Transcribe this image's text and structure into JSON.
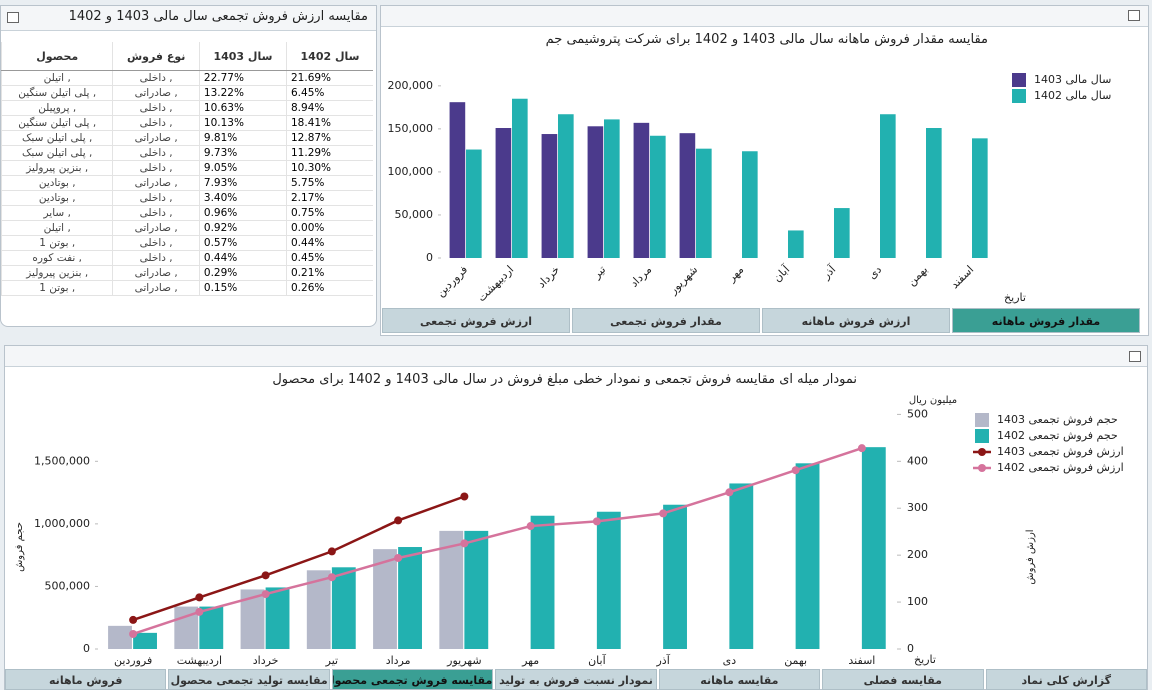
{
  "table": {
    "title": "مقایسه ارزش فروش تجمعی سال مالی 1403 و 1402",
    "columns": [
      "محصول",
      "نوع فروش",
      "سال 1403",
      "سال 1402"
    ],
    "rows": [
      [
        "اتیلن ,",
        "داخلی ,",
        "22.77%",
        "21.69%"
      ],
      [
        "پلی اتیلن سنگین ,",
        "صادراتی ,",
        "13.22%",
        "6.45%"
      ],
      [
        "پروپیلن ,",
        "داخلی ,",
        "10.63%",
        "8.94%"
      ],
      [
        "پلی اتیلن سنگین ,",
        "داخلی ,",
        "10.13%",
        "18.41%"
      ],
      [
        "پلی اتیلن سبک ,",
        "صادراتی ,",
        "9.81%",
        "12.87%"
      ],
      [
        "پلی اتیلن سبک ,",
        "داخلی ,",
        "9.73%",
        "11.29%"
      ],
      [
        "بنزین پیرولیز ,",
        "داخلی ,",
        "9.05%",
        "10.30%"
      ],
      [
        "بوتادین ,",
        "صادراتی ,",
        "7.93%",
        "5.75%"
      ],
      [
        "بوتادین ,",
        "داخلی ,",
        "3.40%",
        "2.17%"
      ],
      [
        "سایر ,",
        "داخلی ,",
        "0.96%",
        "0.75%"
      ],
      [
        "اتیلن ,",
        "صادراتی ,",
        "0.92%",
        "0.00%"
      ],
      [
        "بوتن 1 ,",
        "داخلی ,",
        "0.57%",
        "0.44%"
      ],
      [
        "نفت کوره ,",
        "داخلی ,",
        "0.44%",
        "0.45%"
      ],
      [
        "بنزین پیرولیز ,",
        "صادراتی ,",
        "0.29%",
        "0.21%"
      ],
      [
        "بوتن 1 ,",
        "صادراتی ,",
        "0.15%",
        "0.26%"
      ]
    ]
  },
  "chart_data": [
    {
      "type": "bar",
      "title": "مقایسه مقدار فروش ماهانه سال مالی 1403 و 1402 برای شرکت پتروشیمی جم",
      "categories": [
        "فروردین",
        "اردیبهشت",
        "خرداد",
        "تیر",
        "مرداد",
        "شهریور",
        "مهر",
        "آبان",
        "آذر",
        "دی",
        "بهمن",
        "اسفند"
      ],
      "series": [
        {
          "name": "سال مالی 1403",
          "color": "#4b3a8c",
          "values": [
            181000,
            151000,
            144000,
            153000,
            157000,
            145000,
            null,
            null,
            null,
            null,
            null,
            null
          ]
        },
        {
          "name": "سال مالی 1402",
          "color": "#22b1b0",
          "values": [
            126000,
            185000,
            167000,
            161000,
            142000,
            127000,
            124000,
            32000,
            58000,
            167000,
            151000,
            139000
          ]
        }
      ],
      "ylim": [
        0,
        230000
      ],
      "yticks": [
        0,
        {
          "value": 50000,
          "label": "50,000"
        },
        {
          "value": 100000,
          "label": "100,000"
        },
        {
          "value": 150000,
          "label": "150,000"
        },
        {
          "value": 200000,
          "label": "200,000"
        }
      ],
      "xlabel": "تاریخ",
      "grid": false
    },
    {
      "type": "combo",
      "title": "نمودار میله ای مقایسه فروش تجمعی و نمودار خطی مبلغ فروش در سال مالی 1403 و 1402 برای محصول",
      "categories": [
        "فروردین",
        "اردیبهشت",
        "خرداد",
        "تیر",
        "مرداد",
        "شهریور",
        "مهر",
        "آبان",
        "آذر",
        "دی",
        "بهمن",
        "اسفند"
      ],
      "series": [
        {
          "name": "حجم فروش تجمعی 1403",
          "type": "bar",
          "color": "#b4b8c9",
          "values": [
            185000,
            339000,
            476000,
            629000,
            798000,
            944000,
            null,
            null,
            null,
            null,
            null,
            null
          ]
        },
        {
          "name": "حجم فروش تجمعی 1402",
          "type": "bar",
          "color": "#22b1b0",
          "values": [
            129000,
            339000,
            492000,
            653000,
            815000,
            944000,
            1065000,
            1097000,
            1153000,
            1323000,
            1484000,
            1613000
          ]
        },
        {
          "name": "ارزش فروش تجمعی 1403",
          "type": "line",
          "axis": "y2",
          "color": "#8b1616",
          "values": [
            62,
            110,
            157,
            208,
            274,
            325,
            null,
            null,
            null,
            null,
            null,
            null
          ]
        },
        {
          "name": "ارزش فروش تجمعی 1402",
          "type": "line",
          "axis": "y2",
          "color": "#d5739c",
          "values": [
            32,
            79,
            117,
            153,
            194,
            225,
            262,
            272,
            289,
            334,
            381,
            428
          ]
        }
      ],
      "ylim": [
        0,
        1950000
      ],
      "yticks": [
        0,
        {
          "value": 500000,
          "label": "500,000"
        },
        {
          "value": 1000000,
          "label": "1,000,000"
        },
        {
          "value": 1500000,
          "label": "1,500,000"
        }
      ],
      "y2lim": [
        0,
        520
      ],
      "y2ticks": [
        0,
        100,
        200,
        300,
        400,
        500
      ],
      "ylabel": "حجم فروش",
      "y2label": "ارزش فروش",
      "y2unit": "میلیون ریال",
      "xlabel": "تاریخ",
      "grid": false
    }
  ],
  "top_tabs": [
    "ارزش فروش تجمعی",
    "مقدار فروش تجمعی",
    "ارزش فروش ماهانه",
    "مقدار فروش ماهانه"
  ],
  "bottom_tabs": [
    "فروش ماهانه",
    "مقایسه تولید تجمعی محصول",
    "مقایسه فروش تجمعی محصول",
    "نمودار نسبت فروش به تولید",
    "مقایسه ماهانه",
    "مقایسه فصلی",
    "گزارش کلی نماد"
  ]
}
